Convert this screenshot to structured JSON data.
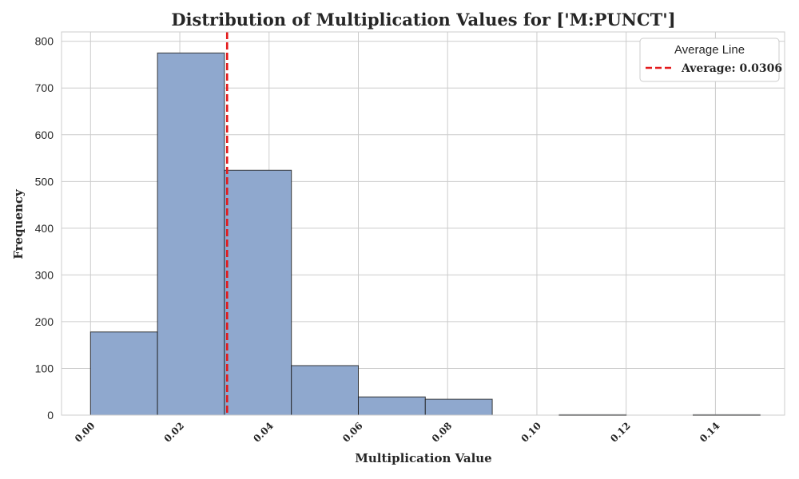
{
  "chart_data": {
    "type": "bar",
    "subtype": "histogram",
    "title": "Distribution of Multiplication Values for ['M:PUNCT']",
    "xlabel": "Multiplication Value",
    "ylabel": "Frequency",
    "xlim": [
      -0.0065,
      0.1555
    ],
    "ylim": [
      0,
      820
    ],
    "x_ticks": [
      0.0,
      0.02,
      0.04,
      0.06,
      0.08,
      0.1,
      0.12,
      0.14
    ],
    "x_tick_labels": [
      "0.00",
      "0.02",
      "0.04",
      "0.06",
      "0.08",
      "0.10",
      "0.12",
      "0.14"
    ],
    "y_ticks": [
      0,
      100,
      200,
      300,
      400,
      500,
      600,
      700,
      800
    ],
    "y_tick_labels": [
      "0",
      "100",
      "200",
      "300",
      "400",
      "500",
      "600",
      "700",
      "800"
    ],
    "bin_edges": [
      0.0,
      0.015,
      0.03,
      0.045,
      0.06,
      0.075,
      0.09,
      0.105,
      0.12,
      0.135,
      0.15
    ],
    "values": [
      178,
      775,
      524,
      106,
      39,
      34,
      0,
      1,
      0,
      1
    ],
    "bar_color": "#8FA8CE",
    "bar_edge_color": "#1f1f1f",
    "grid": true,
    "average": 0.0306,
    "average_line_color": "#e31a1c",
    "legend": {
      "title": "Average Line",
      "placement": "top-right",
      "entries": [
        "Average: 0.0306"
      ]
    }
  }
}
